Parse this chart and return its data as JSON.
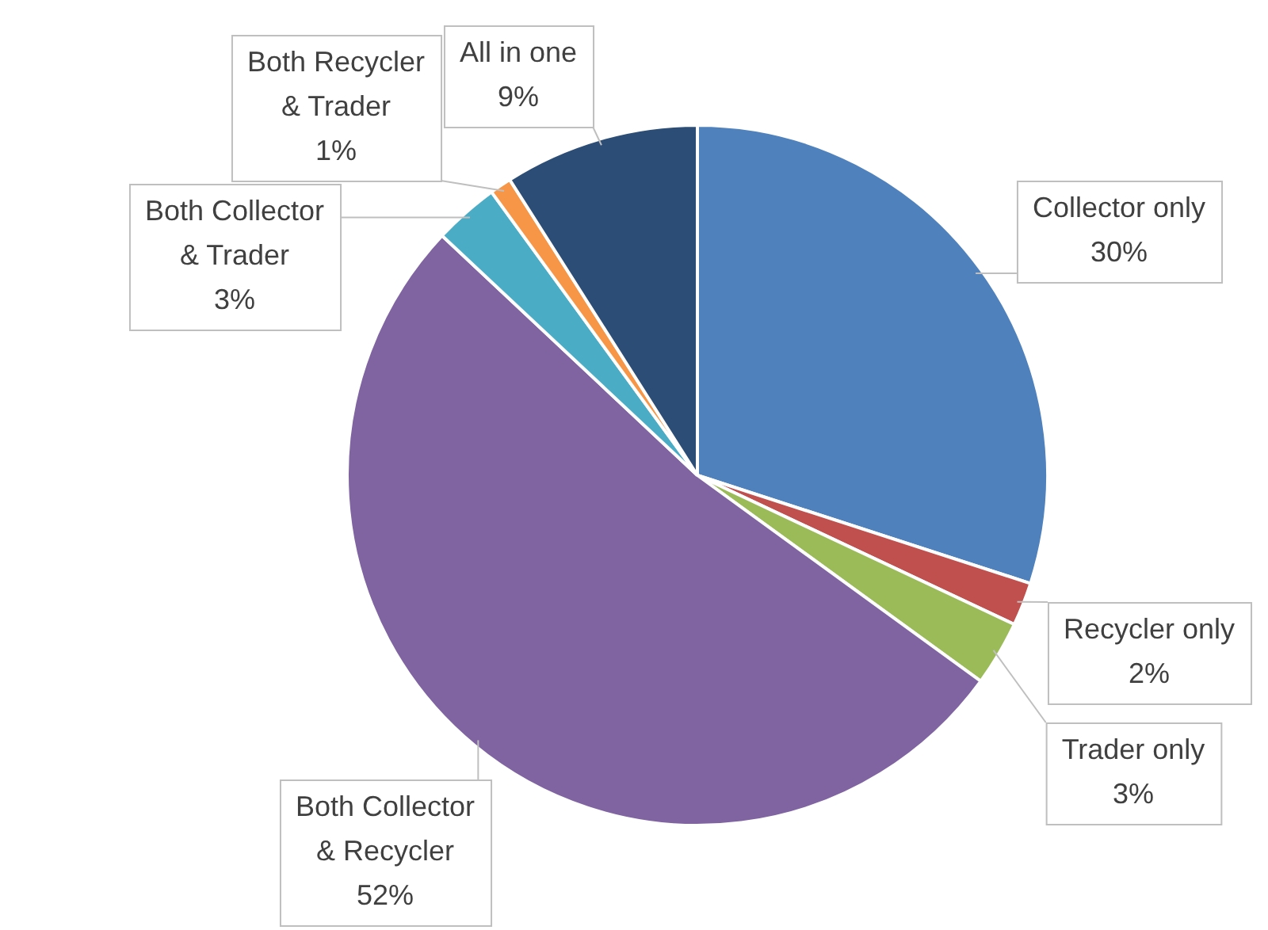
{
  "chart_data": {
    "type": "pie",
    "categories": [
      "Collector only",
      "Recycler only",
      "Trader only",
      "Both Collector & Recycler",
      "Both Collector & Trader",
      "Both Recycler & Trader",
      "All in one"
    ],
    "values": [
      30,
      2,
      3,
      52,
      3,
      1,
      9
    ],
    "colors": [
      "#4f81bd",
      "#c0504d",
      "#9bbb59",
      "#8064a2",
      "#4bacc6",
      "#f79646",
      "#2c4d75"
    ],
    "value_labels": [
      "30%",
      "2%",
      "3%",
      "52%",
      "3%",
      "1%",
      "9%"
    ],
    "legend": false
  }
}
